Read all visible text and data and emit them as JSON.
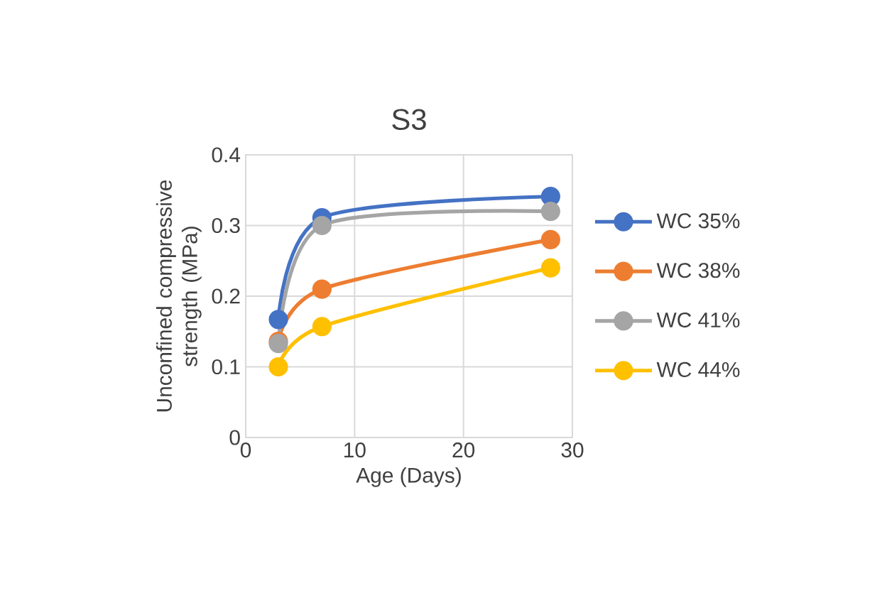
{
  "chart_data": {
    "type": "line",
    "title": "S3",
    "xlabel": "Age (Days)",
    "ylabel": "Unconfined compressive strength (MPa)",
    "x": [
      3,
      7,
      28
    ],
    "series": [
      {
        "name": "WC 35%",
        "color": "#4472c4",
        "values": [
          0.167,
          0.311,
          0.341
        ]
      },
      {
        "name": "WC 38%",
        "color": "#ed7d31",
        "values": [
          0.136,
          0.21,
          0.28
        ]
      },
      {
        "name": "WC 41%",
        "color": "#a5a5a5",
        "values": [
          0.133,
          0.3,
          0.32
        ]
      },
      {
        "name": "WC 44%",
        "color": "#ffc000",
        "values": [
          0.1,
          0.157,
          0.24
        ]
      }
    ],
    "xlim": [
      0,
      30
    ],
    "xticks": [
      0,
      10,
      20,
      30
    ],
    "ylim": [
      0,
      0.4
    ],
    "yticks": [
      0,
      0.1,
      0.2,
      0.3,
      0.4
    ],
    "grid": true,
    "legend": "right",
    "marker": "circle",
    "line_style": "solid"
  }
}
